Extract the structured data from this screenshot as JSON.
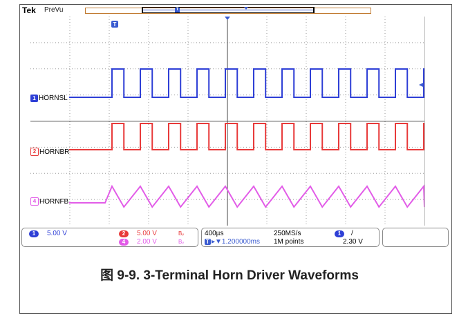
{
  "header": {
    "brand": "Tek",
    "mode": "PreVu",
    "trigger_marker": "T"
  },
  "channels": [
    {
      "id": "1",
      "name": "HORNSL",
      "color": "#2e3fd6"
    },
    {
      "id": "2",
      "name": "HORNBR",
      "color": "#e83a3a"
    },
    {
      "id": "4",
      "name": "HORNFB",
      "color": "#e25ce8"
    }
  ],
  "status": {
    "ch1_scale": "5.00 V",
    "ch2_scale": "5.00 V",
    "ch4_scale": "2.00 V",
    "bw_ch2": "Bᵥ",
    "bw_ch4": "Bᵥ",
    "timebase": "400µs",
    "sample_rate": "250MS/s",
    "position": "▸▼1.200000ms",
    "record_length": "1M points",
    "trigger_source": "1",
    "trigger_slope": "/",
    "trigger_level": "2.30 V"
  },
  "caption": "图 9-9. 3-Terminal Horn Driver Waveforms"
}
